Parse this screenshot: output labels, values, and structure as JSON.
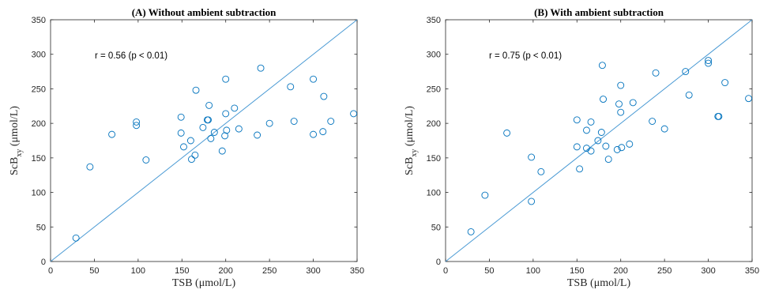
{
  "chart_data": [
    {
      "type": "scatter",
      "title": "(A) Without ambient subtraction",
      "xlabel": "TSB (μmol/L)",
      "ylabel": "ScB_xy (μmol/L)",
      "ylabel_main": "ScB",
      "ylabel_sub": "xy",
      "ylabel_unit": " (μmol/L)",
      "xlim": [
        0,
        350
      ],
      "ylim": [
        0,
        350
      ],
      "xticks": [
        0,
        50,
        100,
        150,
        200,
        250,
        300,
        350
      ],
      "yticks": [
        0,
        50,
        100,
        150,
        200,
        250,
        300,
        350
      ],
      "annotation": "r = 0.56 (p < 0.01)",
      "reference_line": {
        "x": [
          0,
          350
        ],
        "y": [
          0,
          350
        ]
      },
      "marker_color": "#0072BD",
      "line_color": "#4a9ad4",
      "series": [
        {
          "points": [
            [
              29,
              34
            ],
            [
              45,
              137
            ],
            [
              70,
              184
            ],
            [
              98,
              202
            ],
            [
              98,
              197
            ],
            [
              109,
              147
            ],
            [
              149,
              209
            ],
            [
              149,
              186
            ],
            [
              152,
              166
            ],
            [
              160,
              175
            ],
            [
              161,
              148
            ],
            [
              165,
              154
            ],
            [
              166,
              248
            ],
            [
              174,
              194
            ],
            [
              179,
              205
            ],
            [
              180,
              205
            ],
            [
              181,
              226
            ],
            [
              183,
              178
            ],
            [
              187,
              187
            ],
            [
              196,
              160
            ],
            [
              199,
              182
            ],
            [
              200,
              214
            ],
            [
              200,
              264
            ],
            [
              201,
              190
            ],
            [
              210,
              222
            ],
            [
              215,
              192
            ],
            [
              236,
              183
            ],
            [
              240,
              280
            ],
            [
              250,
              200
            ],
            [
              274,
              253
            ],
            [
              278,
              203
            ],
            [
              300,
              264
            ],
            [
              300,
              184
            ],
            [
              311,
              188
            ],
            [
              312,
              239
            ],
            [
              320,
              203
            ],
            [
              346,
              214
            ]
          ]
        }
      ]
    },
    {
      "type": "scatter",
      "title": "(B) With ambient subtraction",
      "xlabel": "TSB (μmol/L)",
      "ylabel": "ScB_xy (μmol/L)",
      "ylabel_main": "ScB",
      "ylabel_sub": "xy",
      "ylabel_unit": " (μmol/L)",
      "xlim": [
        0,
        350
      ],
      "ylim": [
        0,
        350
      ],
      "xticks": [
        0,
        50,
        100,
        150,
        200,
        250,
        300,
        350
      ],
      "yticks": [
        0,
        50,
        100,
        150,
        200,
        250,
        300,
        350
      ],
      "annotation": "r = 0.75 (p < 0.01)",
      "reference_line": {
        "x": [
          0,
          350
        ],
        "y": [
          0,
          350
        ]
      },
      "marker_color": "#0072BD",
      "line_color": "#4a9ad4",
      "series": [
        {
          "points": [
            [
              29,
              43
            ],
            [
              45,
              96
            ],
            [
              70,
              186
            ],
            [
              98,
              151
            ],
            [
              98,
              87
            ],
            [
              109,
              130
            ],
            [
              150,
              205
            ],
            [
              150,
              166
            ],
            [
              153,
              134
            ],
            [
              161,
              190
            ],
            [
              161,
              164
            ],
            [
              166,
              202
            ],
            [
              166,
              160
            ],
            [
              174,
              175
            ],
            [
              178,
              187
            ],
            [
              179,
              284
            ],
            [
              180,
              235
            ],
            [
              183,
              167
            ],
            [
              186,
              148
            ],
            [
              196,
              162
            ],
            [
              198,
              228
            ],
            [
              200,
              255
            ],
            [
              200,
              216
            ],
            [
              201,
              165
            ],
            [
              210,
              170
            ],
            [
              214,
              230
            ],
            [
              236,
              203
            ],
            [
              240,
              273
            ],
            [
              250,
              192
            ],
            [
              274,
              275
            ],
            [
              278,
              241
            ],
            [
              300,
              287
            ],
            [
              300,
              291
            ],
            [
              311,
              210
            ],
            [
              312,
              210
            ],
            [
              319,
              259
            ],
            [
              346,
              236
            ]
          ]
        }
      ]
    }
  ]
}
